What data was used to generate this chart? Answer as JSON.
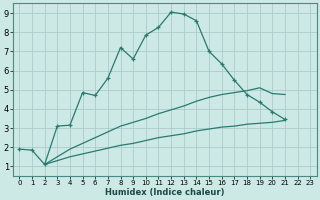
{
  "xlabel": "Humidex (Indice chaleur)",
  "xlim": [
    -0.5,
    23.5
  ],
  "ylim": [
    0.5,
    9.5
  ],
  "xticks": [
    0,
    1,
    2,
    3,
    4,
    5,
    6,
    7,
    8,
    9,
    10,
    11,
    12,
    13,
    14,
    15,
    16,
    17,
    18,
    19,
    20,
    21,
    22,
    23
  ],
  "yticks": [
    1,
    2,
    3,
    4,
    5,
    6,
    7,
    8,
    9
  ],
  "background_color": "#cce9e5",
  "grid_color": "#aaccca",
  "line_color": "#2a7a70",
  "series": [
    {
      "x": [
        0,
        1,
        2,
        3,
        4,
        5,
        6,
        7,
        8,
        9,
        10,
        11,
        12,
        13,
        14,
        15,
        16,
        17,
        18,
        19,
        20,
        21
      ],
      "y": [
        1.9,
        1.85,
        1.1,
        3.1,
        3.15,
        4.85,
        4.7,
        5.6,
        7.2,
        6.6,
        7.85,
        8.25,
        9.05,
        8.95,
        8.6,
        7.0,
        6.35,
        5.5,
        4.75,
        4.35,
        3.85,
        3.45
      ],
      "marker": true
    },
    {
      "x": [
        2,
        3,
        4,
        5,
        6,
        7,
        8,
        9,
        10,
        11,
        12,
        13,
        14,
        15,
        16,
        17,
        18,
        19,
        20,
        21
      ],
      "y": [
        1.1,
        1.3,
        1.5,
        1.65,
        1.8,
        1.95,
        2.1,
        2.2,
        2.35,
        2.5,
        2.6,
        2.7,
        2.85,
        2.95,
        3.05,
        3.1,
        3.2,
        3.25,
        3.3,
        3.4
      ],
      "marker": false
    },
    {
      "x": [
        2,
        3,
        4,
        5,
        6,
        7,
        8,
        9,
        10,
        11,
        12,
        13,
        14,
        15,
        16,
        17,
        18,
        19,
        20,
        21
      ],
      "y": [
        1.1,
        1.5,
        1.9,
        2.2,
        2.5,
        2.8,
        3.1,
        3.3,
        3.5,
        3.75,
        3.95,
        4.15,
        4.4,
        4.6,
        4.75,
        4.85,
        4.95,
        5.1,
        4.8,
        4.75
      ],
      "marker": false
    }
  ]
}
